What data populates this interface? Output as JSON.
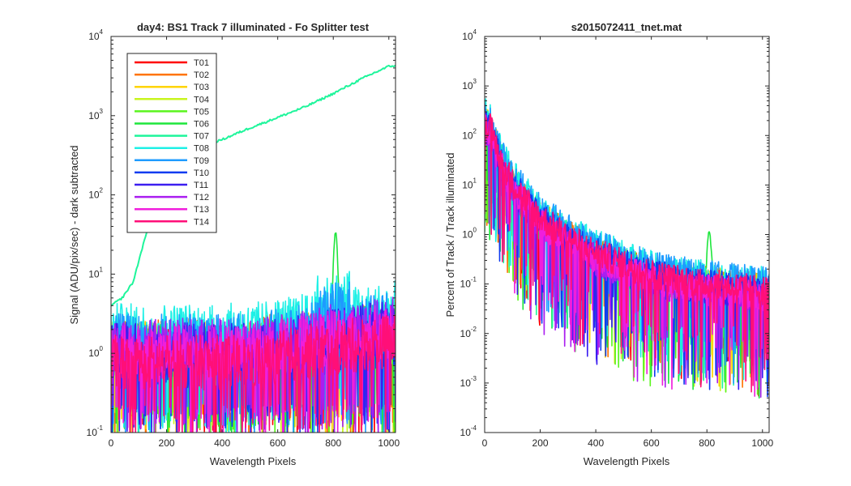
{
  "figure": {
    "background": "#ffffff",
    "line_colors": [
      "#ff0000",
      "#ff7300",
      "#ffd400",
      "#c8f51e",
      "#5af51e",
      "#1ee63c",
      "#1ef59b",
      "#1ef0e6",
      "#1e9bff",
      "#0f3cf0",
      "#3c1ef0",
      "#aa1ef0",
      "#f01edc",
      "#ff0f78"
    ]
  },
  "chart_data": [
    {
      "type": "line",
      "title": "day4: BS1  Track 7 illuminated - Fo Splitter test",
      "xlabel": "Wavelength Pixels",
      "ylabel": "Signal (ADU/pix/sec) - dark subtracted",
      "xlim": [
        0,
        1024
      ],
      "ylim": [
        0.1,
        10000
      ],
      "yscale": "log",
      "xticks": [
        "0",
        "200",
        "400",
        "600",
        "800",
        "1000"
      ],
      "yticks": [
        {
          "base": "10",
          "exp": "-1"
        },
        {
          "base": "10",
          "exp": "0"
        },
        {
          "base": "10",
          "exp": "1"
        },
        {
          "base": "10",
          "exp": "2"
        },
        {
          "base": "10",
          "exp": "3"
        },
        {
          "base": "10",
          "exp": "4"
        }
      ],
      "legend_position": "top-left",
      "series": [
        {
          "name": "T01",
          "color": "#ff0000"
        },
        {
          "name": "T02",
          "color": "#ff7300"
        },
        {
          "name": "T03",
          "color": "#ffd400"
        },
        {
          "name": "T04",
          "color": "#c8f51e"
        },
        {
          "name": "T05",
          "color": "#5af51e"
        },
        {
          "name": "T06",
          "color": "#1ee63c"
        },
        {
          "name": "T07",
          "color": "#1ef59b",
          "x": [
            0,
            40,
            80,
            110,
            150,
            200,
            300,
            400,
            500,
            600,
            700,
            800,
            900,
            950,
            1000,
            1024
          ],
          "y": [
            4,
            5,
            8,
            20,
            60,
            250,
            380,
            500,
            700,
            950,
            1300,
            1900,
            2900,
            3500,
            4200,
            4300
          ]
        },
        {
          "name": "T08",
          "color": "#1ef0e6"
        },
        {
          "name": "T09",
          "color": "#1e9bff"
        },
        {
          "name": "T10",
          "color": "#0f3cf0"
        },
        {
          "name": "T11",
          "color": "#3c1ef0"
        },
        {
          "name": "T12",
          "color": "#aa1ef0"
        },
        {
          "name": "T13",
          "color": "#f01edc"
        },
        {
          "name": "T14",
          "color": "#ff0f78"
        }
      ],
      "annotations": [
        {
          "series": "T06",
          "peak_x": 808,
          "peak_y": 30,
          "baseline": 4
        }
      ]
    },
    {
      "type": "line",
      "title": "s2015072411_tnet.mat",
      "xlabel": "Wavelength Pixels",
      "ylabel": "Percent of Track / Track illuminated",
      "xlim": [
        0,
        1024
      ],
      "ylim": [
        0.0001,
        10000
      ],
      "yscale": "log",
      "xticks": [
        "0",
        "200",
        "400",
        "600",
        "800",
        "1000"
      ],
      "yticks": [
        {
          "base": "10",
          "exp": "-4"
        },
        {
          "base": "10",
          "exp": "-3"
        },
        {
          "base": "10",
          "exp": "-2"
        },
        {
          "base": "10",
          "exp": "-1"
        },
        {
          "base": "10",
          "exp": "0"
        },
        {
          "base": "10",
          "exp": "1"
        },
        {
          "base": "10",
          "exp": "2"
        },
        {
          "base": "10",
          "exp": "3"
        },
        {
          "base": "10",
          "exp": "4"
        }
      ],
      "envelope": {
        "x": [
          0,
          20,
          50,
          100,
          200,
          300,
          400,
          500,
          600,
          700,
          800,
          900,
          1024
        ],
        "y": [
          300,
          200,
          60,
          15,
          3,
          1.2,
          0.6,
          0.35,
          0.22,
          0.17,
          0.14,
          0.12,
          0.1
        ]
      },
      "annotations": [
        {
          "series": "T06",
          "peak_x": 808,
          "peak_y": 1.1
        }
      ]
    }
  ]
}
